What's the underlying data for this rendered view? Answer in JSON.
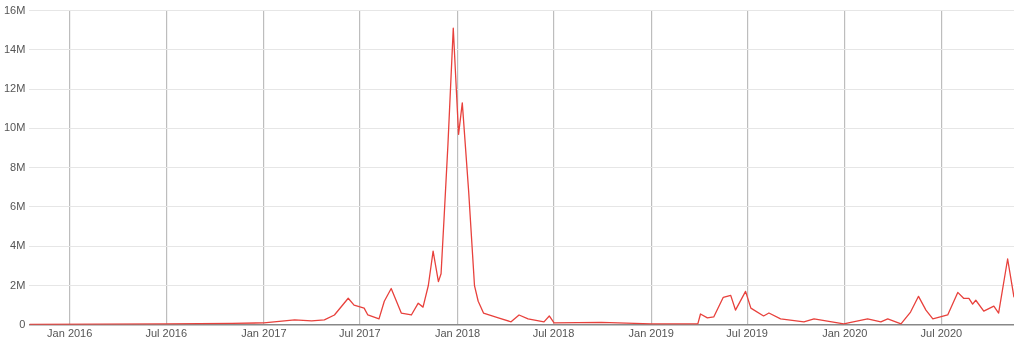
{
  "chart_data": {
    "type": "line",
    "x": [
      "2015-10-17",
      "2016-03-02",
      "2016-07-01",
      "2016-11-02",
      "2017-01-01",
      "2017-02-28",
      "2017-04-01",
      "2017-04-25",
      "2017-05-14",
      "2017-06-09",
      "2017-06-20",
      "2017-07-09",
      "2017-07-16",
      "2017-08-06",
      "2017-08-16",
      "2017-08-29",
      "2017-09-17",
      "2017-10-06",
      "2017-10-19",
      "2017-10-28",
      "2017-11-07",
      "2017-11-16",
      "2017-11-26",
      "2017-12-01",
      "2017-12-07",
      "2017-12-14",
      "2017-12-24",
      "2018-01-03",
      "2018-01-10",
      "2018-01-22",
      "2018-02-02",
      "2018-02-09",
      "2018-02-19",
      "2018-03-19",
      "2018-04-12",
      "2018-04-27",
      "2018-05-14",
      "2018-06-13",
      "2018-06-23",
      "2018-07-02",
      "2018-09-29",
      "2019-01-01",
      "2019-03-30",
      "2019-04-04",
      "2019-04-17",
      "2019-04-29",
      "2019-05-17",
      "2019-05-31",
      "2019-06-09",
      "2019-06-28",
      "2019-07-08",
      "2019-08-01",
      "2019-08-11",
      "2019-09-02",
      "2019-10-16",
      "2019-11-04",
      "2019-12-30",
      "2020-02-13",
      "2020-03-09",
      "2020-03-22",
      "2020-04-16",
      "2020-05-04",
      "2020-05-19",
      "2020-06-02",
      "2020-06-15",
      "2020-07-13",
      "2020-08-01",
      "2020-08-12",
      "2020-08-22",
      "2020-08-29",
      "2020-09-04",
      "2020-09-19",
      "2020-10-08",
      "2020-10-17",
      "2020-11-03",
      "2020-11-15"
    ],
    "series": [
      {
        "color": "#e8413c",
        "values": [
          20000,
          30000,
          50000,
          70000,
          100000,
          250000,
          200000,
          250000,
          500000,
          1350000,
          1000000,
          850000,
          500000,
          300000,
          1200000,
          1850000,
          600000,
          500000,
          1100000,
          900000,
          2000000,
          3750000,
          2200000,
          2600000,
          5600000,
          9200000,
          15100000,
          9700000,
          11300000,
          6800000,
          2000000,
          1200000,
          600000,
          350000,
          150000,
          500000,
          300000,
          150000,
          450000,
          100000,
          120000,
          50000,
          50000,
          550000,
          350000,
          400000,
          1400000,
          1500000,
          750000,
          1700000,
          850000,
          450000,
          600000,
          300000,
          150000,
          300000,
          50000,
          300000,
          150000,
          300000,
          50000,
          650000,
          1450000,
          750000,
          300000,
          500000,
          1650000,
          1350000,
          1350000,
          1050000,
          1250000,
          700000,
          950000,
          600000,
          3350000,
          1400000
        ]
      }
    ],
    "xlim": [
      "2015-10-17",
      "2020-11-15"
    ],
    "xticks": [
      {
        "value": "2016-01-01",
        "label": "Jan 2016"
      },
      {
        "value": "2016-07-01",
        "label": "Jul 2016"
      },
      {
        "value": "2017-01-01",
        "label": "Jan 2017"
      },
      {
        "value": "2017-07-01",
        "label": "Jul 2017"
      },
      {
        "value": "2018-01-01",
        "label": "Jan 2018"
      },
      {
        "value": "2018-07-01",
        "label": "Jul 2018"
      },
      {
        "value": "2019-01-01",
        "label": "Jan 2019"
      },
      {
        "value": "2019-07-01",
        "label": "Jul 2019"
      },
      {
        "value": "2020-01-01",
        "label": "Jan 2020"
      },
      {
        "value": "2020-07-01",
        "label": "Jul 2020"
      }
    ],
    "ylim": [
      0,
      16000000
    ],
    "yticks": [
      0,
      {
        "value": 2000000,
        "label": "2M"
      },
      {
        "value": 4000000,
        "label": "4M"
      },
      {
        "value": 6000000,
        "label": "6M"
      },
      {
        "value": 8000000,
        "label": "8M"
      },
      {
        "value": 10000000,
        "label": "10M"
      },
      {
        "value": 12000000,
        "label": "12M"
      },
      {
        "value": 14000000,
        "label": "14M"
      },
      {
        "value": 16000000,
        "label": "16M"
      }
    ],
    "grid": true,
    "legend": false,
    "marker": "none",
    "line_style": "solid"
  }
}
